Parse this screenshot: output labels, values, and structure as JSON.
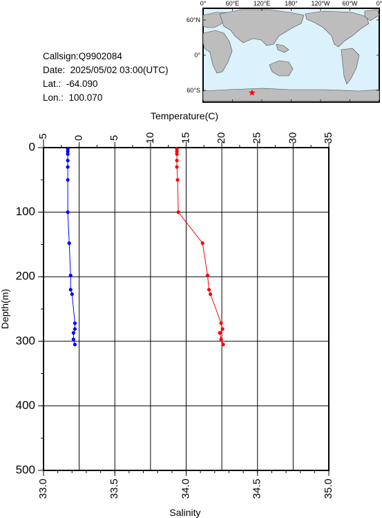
{
  "info": {
    "callsign": "Callsign:Q9902084",
    "date": "Date:  2025/05/02 03:00(UTC)",
    "lat": "Lat.:  -64.090",
    "lon": "Lon.:  100.070"
  },
  "map": {
    "lon_labels": [
      "0°",
      "60°E",
      "120°E",
      "180°",
      "120°W",
      "60°W",
      "0°"
    ],
    "lat_labels": [
      "60°N",
      "0°",
      "60°S"
    ],
    "float_marker": {
      "lat": -64.09,
      "lon": 100.07
    },
    "colors": {
      "ocean": "#dbf1fb",
      "land": "#bdbdbd",
      "marker": "#ff0000"
    }
  },
  "chart_data": {
    "type": "line",
    "title": "",
    "ylabel": "Depth(m)",
    "ylim": [
      0,
      500
    ],
    "y_ticks": [
      "0",
      "100",
      "200",
      "300",
      "400",
      "500"
    ],
    "y_reversed": true,
    "top_axis": {
      "label": "Temperature(C)",
      "range": [
        -5,
        35
      ],
      "ticks": [
        "-5",
        "0",
        "5",
        "10",
        "15",
        "20",
        "25",
        "30",
        "35"
      ]
    },
    "bottom_axis": {
      "label": "Salinity",
      "range": [
        33.0,
        35.0
      ],
      "ticks": [
        "33.0",
        "33.5",
        "34.0",
        "34.5",
        "35.0"
      ]
    },
    "grid": true,
    "series": [
      {
        "axis": "top",
        "color": "#ff0000",
        "points": [
          [
            13.7,
            2
          ],
          [
            13.7,
            6
          ],
          [
            13.7,
            10
          ],
          [
            13.7,
            20
          ],
          [
            13.7,
            30
          ],
          [
            13.8,
            50
          ],
          [
            13.9,
            100
          ],
          [
            17.3,
            148
          ],
          [
            18.0,
            198
          ],
          [
            18.2,
            220
          ],
          [
            18.4,
            227
          ],
          [
            19.9,
            272
          ],
          [
            20.1,
            281
          ],
          [
            19.7,
            287
          ],
          [
            19.9,
            297
          ],
          [
            20.2,
            305
          ]
        ]
      },
      {
        "axis": "bottom",
        "color": "#0000ff",
        "points": [
          [
            33.17,
            2
          ],
          [
            33.17,
            6
          ],
          [
            33.17,
            10
          ],
          [
            33.17,
            20
          ],
          [
            33.17,
            30
          ],
          [
            33.17,
            50
          ],
          [
            33.17,
            100
          ],
          [
            33.18,
            148
          ],
          [
            33.19,
            198
          ],
          [
            33.19,
            220
          ],
          [
            33.2,
            227
          ],
          [
            33.22,
            272
          ],
          [
            33.22,
            281
          ],
          [
            33.21,
            287
          ],
          [
            33.21,
            297
          ],
          [
            33.22,
            305
          ]
        ]
      }
    ]
  }
}
